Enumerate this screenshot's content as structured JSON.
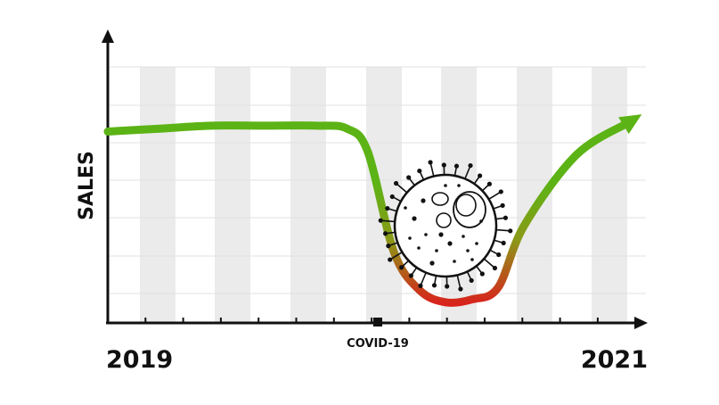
{
  "chart_data": {
    "type": "line",
    "title": "",
    "ylabel": "SALES",
    "xlabel": "",
    "x_start_label": "2019",
    "x_end_label": "2021",
    "annotation": {
      "label": "COVID-19",
      "x": 0.5
    },
    "grid": true,
    "series": [
      {
        "x": [
          0,
          0.1,
          0.2,
          0.3,
          0.4,
          0.46,
          0.5,
          0.55,
          0.6,
          0.65,
          0.7,
          0.75,
          0.8,
          0.9,
          1.0
        ],
        "values": [
          0.65,
          0.66,
          0.67,
          0.67,
          0.67,
          0.66,
          0.58,
          0.24,
          0.11,
          0.07,
          0.08,
          0.12,
          0.33,
          0.57,
          0.68
        ]
      }
    ],
    "colors": {
      "high": "#5cb315",
      "low": "#d8231c"
    }
  }
}
